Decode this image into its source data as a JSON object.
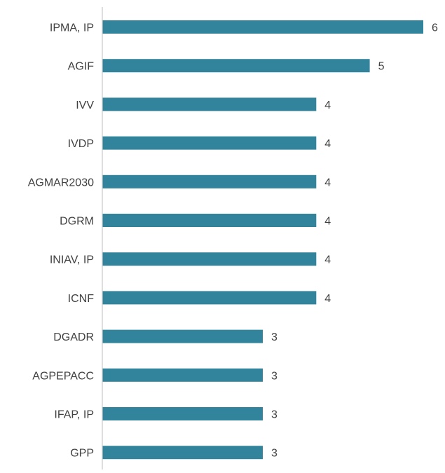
{
  "colors": {
    "bar": "#31849b",
    "axis": "#c8c8c8",
    "text": "#404040",
    "background": "#ffffff"
  },
  "chart_data": {
    "type": "bar",
    "orientation": "horizontal",
    "categories": [
      "IPMA, IP",
      "AGIF",
      "IVV",
      "IVDP",
      "AGMAR2030",
      "DGRM",
      "INIAV, IP",
      "ICNF",
      "DGADR",
      "AGPEPACC",
      "IFAP, IP",
      "GPP"
    ],
    "values": [
      6,
      5,
      4,
      4,
      4,
      4,
      4,
      4,
      3,
      3,
      3,
      3
    ],
    "data_labels": [
      "6",
      "5",
      "4",
      "4",
      "4",
      "4",
      "4",
      "4",
      "3",
      "3",
      "3",
      "3"
    ],
    "xlim": [
      0,
      6
    ],
    "title": "",
    "xlabel": "",
    "ylabel": "",
    "grid": false,
    "legend": "none"
  }
}
